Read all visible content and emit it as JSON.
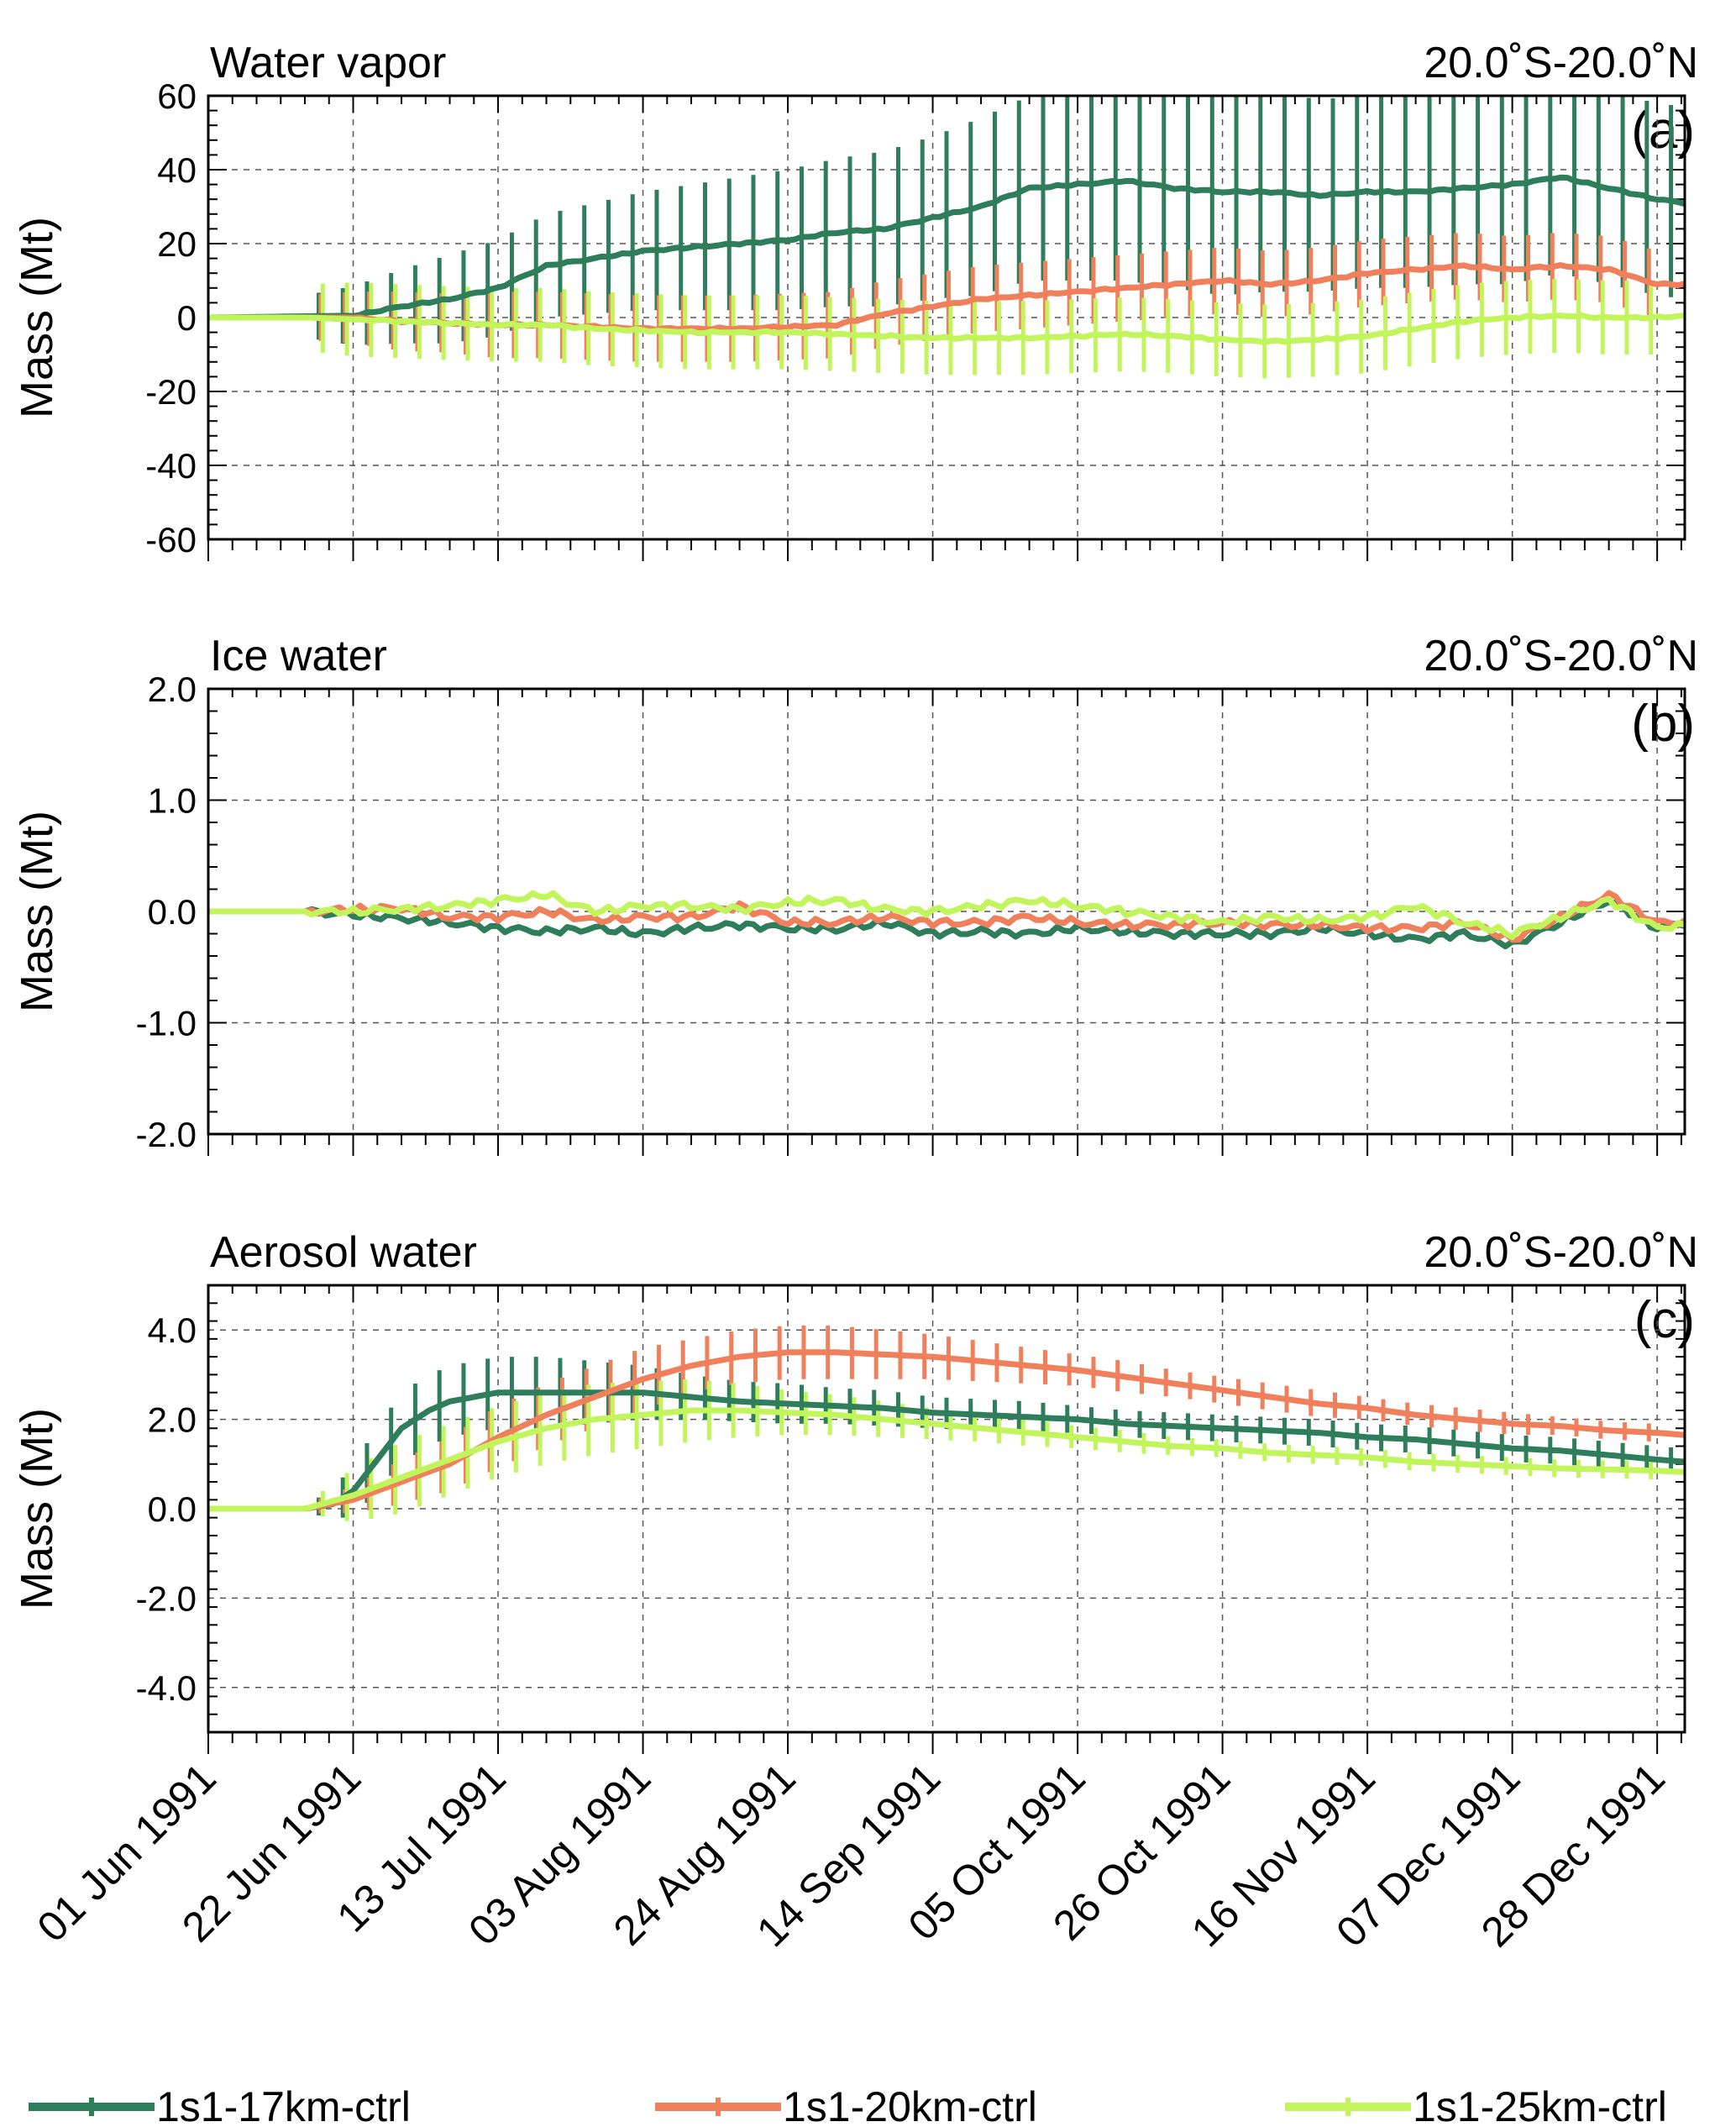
{
  "figure": {
    "x_tick_labels": [
      "01 Jun 1991",
      "22 Jun 1991",
      "13 Jul 1991",
      "03 Aug 1991",
      "24 Aug 1991",
      "14 Sep 1991",
      "05 Oct 1991",
      "26 Oct 1991",
      "16 Nov 1991",
      "07 Dec 1991",
      "28 Dec 1991"
    ],
    "legend": [
      {
        "name": "1s1-17km-ctrl",
        "color": "#2e7d5b"
      },
      {
        "name": "1s1-20km-ctrl",
        "color": "#f07f5c"
      },
      {
        "name": "1s1-25km-ctrl",
        "color": "#c2f55b"
      }
    ]
  },
  "chart_data": [
    {
      "type": "line",
      "title": "Water vapor",
      "region": "20.0˚S-20.0˚N",
      "panel_label": "(a)",
      "ylabel": "Mass (Mt)",
      "ylim": [
        -60,
        60
      ],
      "yticks": [
        -60,
        -40,
        -20,
        0,
        20,
        40,
        60
      ],
      "ytick_labels": [
        "-60",
        "-40",
        "-20",
        "0",
        "20",
        "40",
        "60"
      ],
      "xlim_days": [
        0,
        214
      ],
      "error_bar_day_range": [
        16,
        212
      ],
      "series": [
        {
          "name": "1s1-17km-ctrl",
          "color": "#2e7d5b",
          "days": [
            0,
            21,
            28,
            35,
            42,
            49,
            56,
            63,
            70,
            77,
            84,
            91,
            98,
            105,
            112,
            119,
            126,
            133,
            140,
            147,
            154,
            161,
            168,
            175,
            182,
            189,
            196,
            203,
            210,
            214
          ],
          "values": [
            0,
            0.5,
            3,
            5,
            8,
            14,
            16,
            18,
            19,
            20,
            21,
            23,
            24,
            27,
            30,
            35,
            36,
            37,
            35,
            34,
            34,
            33,
            34,
            34,
            35,
            36,
            38,
            35,
            32,
            31
          ],
          "err": [
            1,
            8,
            10,
            12,
            13,
            14,
            15,
            16,
            17,
            18,
            19,
            20,
            21,
            22,
            24,
            25,
            26,
            27,
            27,
            28,
            27,
            26,
            26,
            26,
            26,
            27,
            26,
            26,
            26,
            26
          ]
        },
        {
          "name": "1s1-20km-ctrl",
          "color": "#f07f5c",
          "days": [
            0,
            14,
            21,
            28,
            35,
            42,
            49,
            56,
            63,
            70,
            77,
            84,
            91,
            98,
            105,
            112,
            119,
            126,
            133,
            140,
            147,
            154,
            161,
            168,
            175,
            182,
            189,
            196,
            203,
            210,
            214
          ],
          "values": [
            0,
            0,
            0,
            -1,
            -1.5,
            -2,
            -2,
            -2.5,
            -3,
            -3,
            -3,
            -2.5,
            -2,
            1,
            3,
            5,
            6,
            7,
            8,
            9,
            10,
            9,
            10,
            12,
            13,
            14,
            13,
            14,
            13,
            9,
            9
          ],
          "err": [
            1,
            6,
            7,
            8,
            8,
            9,
            9,
            9,
            9,
            9,
            9,
            9,
            9,
            9,
            9,
            9,
            9,
            9,
            9,
            9,
            9,
            9,
            9,
            9,
            9,
            9,
            9,
            9,
            9,
            9,
            9
          ]
        },
        {
          "name": "1s1-25km-ctrl",
          "color": "#c2f55b",
          "days": [
            0,
            14,
            21,
            28,
            35,
            42,
            49,
            56,
            63,
            70,
            77,
            84,
            91,
            98,
            105,
            112,
            119,
            126,
            133,
            140,
            147,
            154,
            161,
            168,
            175,
            182,
            189,
            196,
            203,
            210,
            214
          ],
          "values": [
            0,
            0,
            -0.5,
            -1,
            -1.5,
            -2,
            -2,
            -3,
            -3.5,
            -4,
            -4,
            -4,
            -4.5,
            -5,
            -5.5,
            -5.5,
            -5.5,
            -5,
            -4.5,
            -5,
            -6,
            -6.5,
            -6,
            -5,
            -3,
            -1,
            0,
            0.5,
            0,
            0,
            0.5
          ],
          "err": [
            1,
            9,
            10,
            10,
            10,
            10,
            10,
            10,
            10,
            10,
            10,
            10,
            10,
            10,
            10,
            10,
            10,
            10,
            10,
            10,
            10,
            10,
            10,
            10,
            10,
            10,
            10,
            10,
            10,
            10,
            10
          ]
        }
      ]
    },
    {
      "type": "line",
      "title": "Ice water",
      "region": "20.0˚S-20.0˚N",
      "panel_label": "(b)",
      "ylabel": "Mass (Mt)",
      "ylim": [
        -2,
        2
      ],
      "yticks": [
        -2,
        -1,
        0,
        1,
        2
      ],
      "ytick_labels": [
        "-2.0",
        "-1.0",
        "0.0",
        "1.0",
        "2.0"
      ],
      "xlim_days": [
        0,
        214
      ],
      "series": [
        {
          "name": "1s1-17km-ctrl",
          "color": "#2e7d5b",
          "days": [
            0,
            14,
            21,
            28,
            35,
            42,
            49,
            56,
            63,
            70,
            77,
            84,
            91,
            98,
            105,
            112,
            119,
            126,
            133,
            140,
            147,
            154,
            161,
            168,
            175,
            182,
            189,
            196,
            203,
            210,
            214
          ],
          "values": [
            0,
            0,
            -0.03,
            -0.06,
            -0.1,
            -0.15,
            -0.18,
            -0.15,
            -0.2,
            -0.15,
            -0.12,
            -0.15,
            -0.16,
            -0.1,
            -0.2,
            -0.18,
            -0.2,
            -0.15,
            -0.18,
            -0.2,
            -0.2,
            -0.2,
            -0.15,
            -0.2,
            -0.25,
            -0.2,
            -0.3,
            -0.1,
            0.1,
            -0.15,
            -0.1
          ]
        },
        {
          "name": "1s1-20km-ctrl",
          "color": "#f07f5c",
          "days": [
            0,
            14,
            21,
            28,
            35,
            42,
            49,
            56,
            63,
            70,
            77,
            84,
            91,
            98,
            105,
            112,
            119,
            126,
            133,
            140,
            147,
            154,
            161,
            168,
            175,
            182,
            189,
            196,
            203,
            210,
            214
          ],
          "values": [
            0,
            0,
            0.02,
            0.03,
            -0.05,
            -0.05,
            0.0,
            -0.08,
            -0.05,
            -0.05,
            0.05,
            -0.1,
            -0.1,
            -0.05,
            -0.1,
            -0.1,
            -0.05,
            -0.1,
            -0.12,
            -0.12,
            -0.1,
            -0.12,
            -0.12,
            -0.15,
            -0.15,
            -0.1,
            -0.25,
            -0.05,
            0.15,
            -0.1,
            -0.1
          ]
        },
        {
          "name": "1s1-25km-ctrl",
          "color": "#c2f55b",
          "days": [
            0,
            14,
            21,
            28,
            35,
            42,
            49,
            56,
            63,
            70,
            77,
            84,
            91,
            98,
            105,
            112,
            119,
            126,
            133,
            140,
            147,
            154,
            161,
            168,
            175,
            182,
            189,
            196,
            203,
            210,
            214
          ],
          "values": [
            0,
            0,
            0.0,
            0.02,
            0.05,
            0.1,
            0.15,
            0.0,
            0.05,
            0.05,
            0.02,
            0.08,
            0.1,
            0.02,
            0.0,
            0.05,
            0.1,
            0.05,
            0.0,
            -0.05,
            -0.1,
            -0.05,
            -0.08,
            -0.05,
            0.05,
            -0.1,
            -0.2,
            -0.05,
            0.1,
            -0.15,
            -0.12
          ]
        }
      ]
    },
    {
      "type": "line",
      "title": "Aerosol water",
      "region": "20.0˚S-20.0˚N",
      "panel_label": "(c)",
      "ylabel": "Mass (Mt)",
      "ylim": [
        -5,
        5
      ],
      "yticks": [
        -4,
        -2,
        0,
        2,
        4
      ],
      "ytick_labels": [
        "-4.0",
        "-2.0",
        "0.0",
        "2.0",
        "4.0"
      ],
      "xlim_days": [
        0,
        214
      ],
      "error_bar_day_range": [
        16,
        212
      ],
      "series": [
        {
          "name": "1s1-17km-ctrl",
          "color": "#2e7d5b",
          "days": [
            0,
            14,
            18,
            21,
            24,
            28,
            32,
            35,
            42,
            49,
            56,
            63,
            70,
            77,
            84,
            91,
            98,
            105,
            112,
            119,
            126,
            133,
            140,
            147,
            154,
            161,
            168,
            175,
            182,
            189,
            196,
            203,
            210,
            214
          ],
          "values": [
            0,
            0,
            0.1,
            0.4,
            1.0,
            1.8,
            2.2,
            2.4,
            2.6,
            2.6,
            2.6,
            2.6,
            2.5,
            2.4,
            2.35,
            2.3,
            2.25,
            2.15,
            2.1,
            2.05,
            2.0,
            1.9,
            1.85,
            1.8,
            1.75,
            1.7,
            1.6,
            1.55,
            1.45,
            1.35,
            1.3,
            1.2,
            1.1,
            1.05
          ],
          "err": [
            0.05,
            0.1,
            0.3,
            0.6,
            0.7,
            0.8,
            0.8,
            0.8,
            0.8,
            0.8,
            0.7,
            0.6,
            0.5,
            0.45,
            0.45,
            0.4,
            0.4,
            0.35,
            0.35,
            0.35,
            0.3,
            0.3,
            0.3,
            0.3,
            0.3,
            0.3,
            0.3,
            0.3,
            0.3,
            0.3,
            0.3,
            0.3,
            0.3,
            0.3
          ]
        },
        {
          "name": "1s1-20km-ctrl",
          "color": "#f07f5c",
          "days": [
            0,
            14,
            21,
            28,
            35,
            42,
            49,
            56,
            63,
            70,
            77,
            84,
            91,
            98,
            105,
            112,
            119,
            126,
            133,
            140,
            147,
            154,
            161,
            168,
            175,
            182,
            189,
            196,
            203,
            210,
            214
          ],
          "values": [
            0,
            0,
            0.2,
            0.6,
            1.0,
            1.6,
            2.1,
            2.5,
            2.9,
            3.2,
            3.4,
            3.5,
            3.5,
            3.45,
            3.4,
            3.3,
            3.2,
            3.1,
            2.95,
            2.8,
            2.65,
            2.5,
            2.35,
            2.25,
            2.1,
            2.0,
            1.9,
            1.85,
            1.75,
            1.7,
            1.65
          ],
          "err": [
            0.05,
            0.1,
            0.3,
            0.5,
            0.6,
            0.7,
            0.7,
            0.7,
            0.7,
            0.6,
            0.6,
            0.6,
            0.6,
            0.55,
            0.5,
            0.45,
            0.4,
            0.35,
            0.35,
            0.3,
            0.3,
            0.3,
            0.3,
            0.25,
            0.25,
            0.25,
            0.25,
            0.2,
            0.2,
            0.2,
            0.2
          ]
        },
        {
          "name": "1s1-25km-ctrl",
          "color": "#c2f55b",
          "days": [
            0,
            14,
            21,
            28,
            35,
            42,
            49,
            56,
            63,
            70,
            77,
            84,
            91,
            98,
            105,
            112,
            119,
            126,
            133,
            140,
            147,
            154,
            161,
            168,
            175,
            182,
            189,
            196,
            203,
            210,
            214
          ],
          "values": [
            0,
            0,
            0.3,
            0.7,
            1.1,
            1.5,
            1.8,
            2.0,
            2.1,
            2.2,
            2.2,
            2.15,
            2.1,
            2.0,
            1.9,
            1.8,
            1.7,
            1.6,
            1.5,
            1.4,
            1.35,
            1.25,
            1.2,
            1.15,
            1.05,
            1.0,
            0.95,
            0.9,
            0.88,
            0.85,
            0.82
          ],
          "err": [
            0.05,
            0.1,
            0.6,
            0.8,
            0.8,
            0.8,
            0.8,
            0.8,
            0.75,
            0.7,
            0.6,
            0.5,
            0.45,
            0.4,
            0.35,
            0.3,
            0.3,
            0.25,
            0.25,
            0.2,
            0.2,
            0.2,
            0.2,
            0.2,
            0.2,
            0.2,
            0.2,
            0.2,
            0.2,
            0.2,
            0.2
          ]
        }
      ]
    }
  ]
}
